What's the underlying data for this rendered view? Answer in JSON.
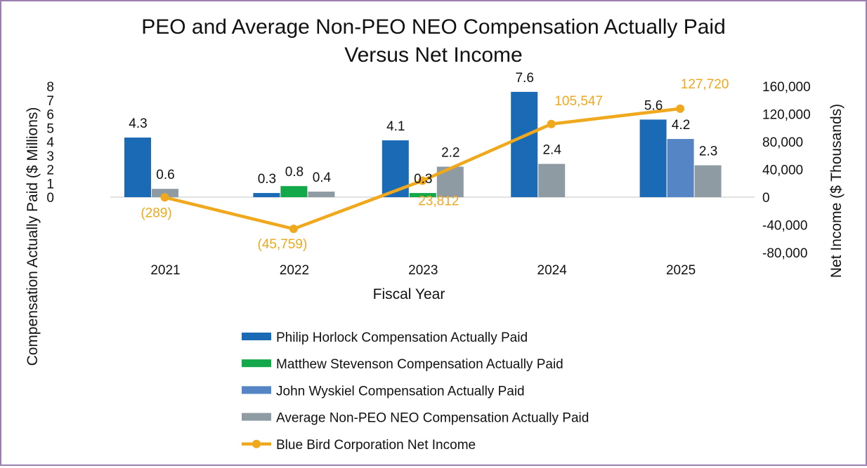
{
  "chart_data": {
    "type": "bar",
    "title_lines": [
      "PEO and Average Non-PEO NEO Compensation Actually Paid",
      "Versus Net Income"
    ],
    "xlabel": "Fiscal Year",
    "ylabel": "Compensation Actually Paid ($ Millions)",
    "y2label": "Net Income ($ Thousands)",
    "categories": [
      "2021",
      "2022",
      "2023",
      "2024",
      "2025"
    ],
    "ylim": [
      0,
      8
    ],
    "yticks": [
      "0",
      "1",
      "2",
      "3",
      "4",
      "5",
      "6",
      "7",
      "8"
    ],
    "y2lim": [
      -80000,
      160000
    ],
    "y2ticks": [
      "-80,000",
      "-40,000",
      "0",
      "40,000",
      "80,000",
      "120,000",
      "160,000"
    ],
    "series": [
      {
        "name": "Philip Horlock Compensation Actually Paid",
        "color": "#1a6ab5",
        "slots": [
          0,
          0,
          0,
          0,
          0
        ],
        "values": [
          4.3,
          0.3,
          4.1,
          7.6,
          5.6
        ],
        "labels": [
          "4.3",
          "0.3",
          "4.1",
          "7.6",
          "5.6"
        ]
      },
      {
        "name": "Matthew Stevenson Compensation Actually Paid",
        "color": "#13a84a",
        "slots": [
          null,
          1,
          1,
          null,
          null
        ],
        "values": [
          null,
          0.8,
          0.3,
          null,
          null
        ],
        "labels": [
          null,
          "0.8",
          "0.3",
          null,
          null
        ]
      },
      {
        "name": "John Wyskiel Compensation Actually Paid",
        "color": "#5585c5",
        "slots": [
          null,
          null,
          null,
          null,
          1
        ],
        "values": [
          null,
          null,
          null,
          null,
          4.2
        ],
        "labels": [
          null,
          null,
          null,
          null,
          "4.2"
        ]
      },
      {
        "name": "Average Non-PEO NEO Compensation Actually Paid",
        "color": "#8f9ba3",
        "slots": [
          1,
          2,
          2,
          1,
          2
        ],
        "values": [
          0.6,
          0.4,
          2.2,
          2.4,
          2.3
        ],
        "labels": [
          "0.6",
          "0.4",
          "2.2",
          "2.4",
          "2.3"
        ]
      }
    ],
    "line": {
      "name": "Blue Bird Corporation Net Income",
      "color": "#f0a81c",
      "axis": "secondary",
      "values": [
        -289,
        -45759,
        23812,
        105547,
        127720
      ],
      "labels": [
        "(289)",
        "(45,759)",
        "23,812",
        "105,547",
        "127,720"
      ]
    },
    "legend_position": "bottom"
  }
}
